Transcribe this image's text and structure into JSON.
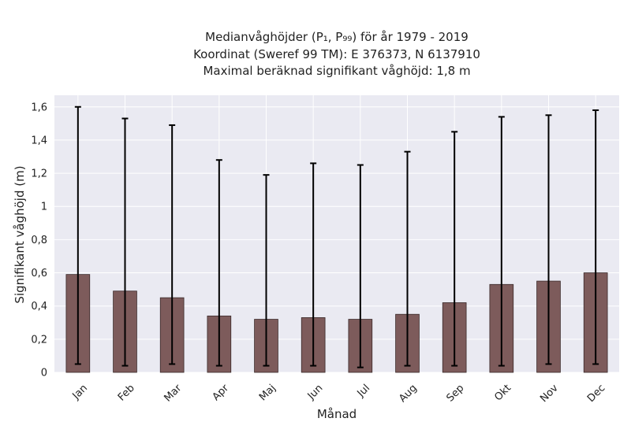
{
  "chart_data": {
    "type": "bar",
    "title_lines": [
      "Medianvåghöjder (P₁, P₉₉) för år 1979 - 2019",
      "Koordinat (Sweref 99 TM): E 376373, N 6137910",
      "Maximal beräknad signifikant våghöjd: 1,8 m"
    ],
    "xlabel": "Månad",
    "ylabel": "Signifikant våghöjd (m)",
    "categories": [
      "Jan",
      "Feb",
      "Mar",
      "Apr",
      "Maj",
      "Jun",
      "Jul",
      "Aug",
      "Sep",
      "Okt",
      "Nov",
      "Dec"
    ],
    "series": [
      {
        "values": [
          0.59,
          0.49,
          0.45,
          0.34,
          0.32,
          0.33,
          0.32,
          0.35,
          0.42,
          0.53,
          0.55,
          0.6
        ],
        "p1": [
          0.05,
          0.04,
          0.05,
          0.04,
          0.04,
          0.04,
          0.03,
          0.04,
          0.04,
          0.04,
          0.05,
          0.05
        ],
        "p99": [
          1.6,
          1.53,
          1.49,
          1.28,
          1.19,
          1.26,
          1.25,
          1.33,
          1.45,
          1.54,
          1.55,
          1.58
        ]
      }
    ],
    "ylim": [
      0,
      1.67
    ],
    "yticks": [
      0,
      0.2,
      0.4,
      0.6,
      0.8,
      1.0,
      1.2,
      1.4,
      1.6
    ],
    "ytick_labels": [
      "0",
      "0,2",
      "0,4",
      "0,6",
      "0,8",
      "1",
      "1,2",
      "1,4",
      "1,6"
    ],
    "grid": true,
    "colors": {
      "bar": "#7d5b5b",
      "bar_edge": "#3a2a2a",
      "error": "#000000",
      "plot_bg": "#eaeaf2",
      "grid": "#ffffff"
    }
  }
}
